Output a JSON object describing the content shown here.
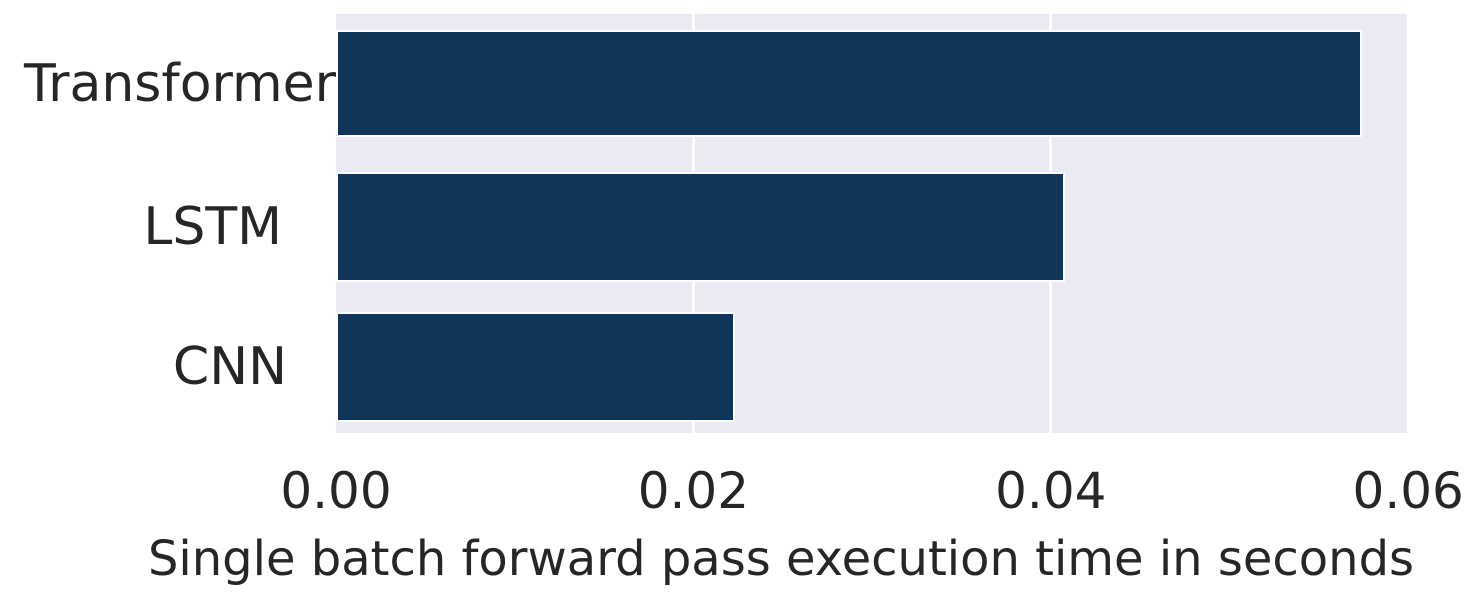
{
  "figure": {
    "background": "#ffffff",
    "text_color": "#262626"
  },
  "chart_data": {
    "type": "bar",
    "orientation": "horizontal",
    "title": "",
    "xlabel": "Single batch forward pass execution time in seconds",
    "ylabel": "",
    "categories": [
      "Transformer",
      "LSTM",
      "CNN"
    ],
    "values": [
      0.0574,
      0.0408,
      0.0223
    ],
    "xticks": [
      0.0,
      0.02,
      0.04,
      0.06
    ],
    "xtick_labels": [
      "0.00",
      "0.02",
      "0.04",
      "0.06"
    ],
    "xlim": [
      0,
      0.0601
    ],
    "grid": true,
    "legend": false,
    "bar_color": "#113459",
    "bar_edge_color": "#fbfcfd",
    "plot_background": "#eaeaf2",
    "gridline_color": "#ffffff"
  }
}
